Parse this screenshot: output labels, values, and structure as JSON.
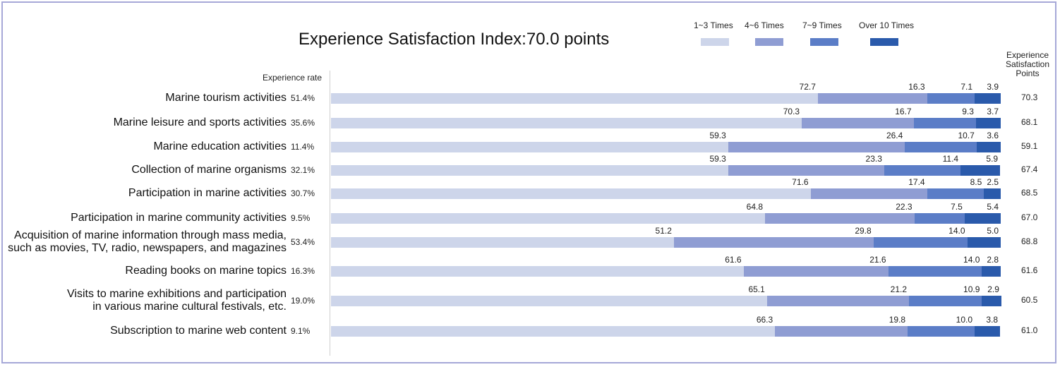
{
  "chart_data": {
    "type": "bar",
    "orientation": "horizontal",
    "stacked": true,
    "title": "Experience Satisfaction Index:70.0 points",
    "legend": {
      "placement": "top-right",
      "items": [
        "1~3 Times",
        "4~6 Times",
        "7~9 Times",
        "Over 10 Times"
      ]
    },
    "colors": [
      "#cdd5ea",
      "#8f9dd3",
      "#5b7dc7",
      "#2a5aab"
    ],
    "experience_rate_header": "Experience rate",
    "points_header": [
      "Experience",
      "Satisfaction",
      "Points"
    ],
    "xlim": [
      0,
      100
    ],
    "grid": false,
    "categories": [
      [
        "Marine tourism activities"
      ],
      [
        "Marine leisure and sports activities"
      ],
      [
        "Marine education activities"
      ],
      [
        "Collection of marine organisms"
      ],
      [
        "Participation in marine activities"
      ],
      [
        "Participation in marine community activities"
      ],
      [
        "Acquisition of marine information through mass media,",
        "such as movies, TV, radio, newspapers, and magazines"
      ],
      [
        "Reading books on marine topics"
      ],
      [
        "Visits to marine exhibitions and participation",
        "in various marine cultural festivals, etc."
      ],
      [
        "Subscription to marine web content"
      ]
    ],
    "experience_rate": [
      "51.4%",
      "35.6%",
      "11.4%",
      "32.1%",
      "30.7%",
      "9.5%",
      "53.4%",
      "16.3%",
      "19.0%",
      "9.1%"
    ],
    "series": [
      {
        "name": "1~3 Times",
        "values": [
          "72.7",
          "70.3",
          "59.3",
          "59.3",
          "71.6",
          "64.8",
          "51.2",
          "61.6",
          "65.1",
          "66.3"
        ]
      },
      {
        "name": "4~6 Times",
        "values": [
          "16.3",
          "16.7",
          "26.4",
          "23.3",
          "17.4",
          "22.3",
          "29.8",
          "21.6",
          "21.2",
          "19.8"
        ]
      },
      {
        "name": "7~9 Times",
        "values": [
          "7.1",
          "9.3",
          "10.7",
          "11.4",
          "8.5",
          "7.5",
          "14.0",
          "14.0",
          "10.9",
          "10.0"
        ]
      },
      {
        "name": "Over 10 Times",
        "values": [
          "3.9",
          "3.7",
          "3.6",
          "5.9",
          "2.5",
          "5.4",
          "5.0",
          "2.8",
          "2.9",
          "3.8"
        ]
      }
    ],
    "satisfaction_points": [
      "70.3",
      "68.1",
      "59.1",
      "67.4",
      "68.5",
      "67.0",
      "68.8",
      "61.6",
      "60.5",
      "61.0"
    ]
  }
}
